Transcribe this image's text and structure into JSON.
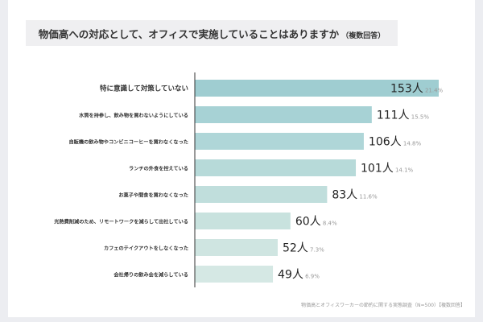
{
  "chart_data": {
    "type": "bar",
    "orientation": "horizontal",
    "title": "物価高への対応として、オフィスで実施していることはありますか",
    "title_note": "（複数回答）",
    "categories": [
      "特に意識して対策していない",
      "水筒を持参し、飲み物を買わないようにしている",
      "自販機の飲み物やコンビニコーヒーを買わなくなった",
      "ランチの外食を控えている",
      "お菓子や間食を買わなくなった",
      "光熱費削減のため、リモートワークを減らして出社している",
      "カフェのテイクアウトをしなくなった",
      "会社帰りの飲み会を減らしている"
    ],
    "values": [
      153,
      111,
      106,
      101,
      83,
      60,
      52,
      49
    ],
    "value_labels": [
      "153人",
      "111人",
      "106人",
      "101人",
      "83人",
      "60人",
      "52人",
      "49人"
    ],
    "percent_labels": [
      "21.4%",
      "15.5%",
      "14.8%",
      "14.1%",
      "11.6%",
      "8.4%",
      "7.3%",
      "6.9%"
    ],
    "unit": "人",
    "xlim": [
      0,
      153
    ],
    "colors": [
      "#9fcdd1",
      "#a7d2d5",
      "#afd6d8",
      "#b7dad9",
      "#c0dedc",
      "#c8e2de",
      "#cfe5e1",
      "#d5e8e4"
    ],
    "source": "物価高とオフィスワーカーの節約に関する実態調査（N=500）【複数回答】"
  }
}
